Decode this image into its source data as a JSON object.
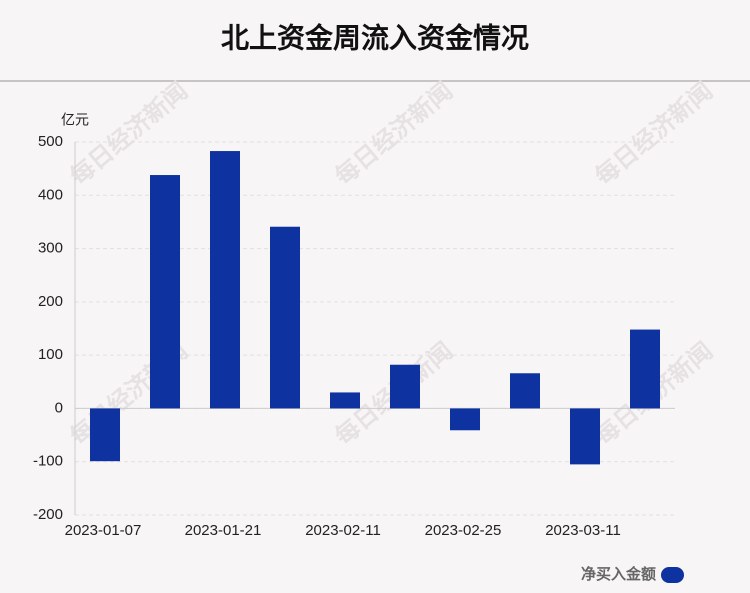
{
  "chart_data": {
    "type": "bar",
    "title": "北上资金周流入资金情况",
    "y_label": "亿元",
    "categories": [
      "2023-01-07",
      null,
      "2023-01-21",
      null,
      "2023-02-11",
      null,
      "2023-02-25",
      null,
      "2023-03-11",
      null
    ],
    "series": [
      {
        "name": "净买入金额",
        "color": "#0e33a0",
        "values": [
          -99,
          438,
          483,
          341,
          30,
          82,
          -41,
          66,
          -105,
          148
        ]
      }
    ],
    "ylim": [
      -200,
      500
    ],
    "yticks": [
      -200,
      -100,
      0,
      100,
      200,
      300,
      400,
      500
    ],
    "grid": true,
    "legend": "bottom-right",
    "watermark": "每日经济新闻"
  }
}
